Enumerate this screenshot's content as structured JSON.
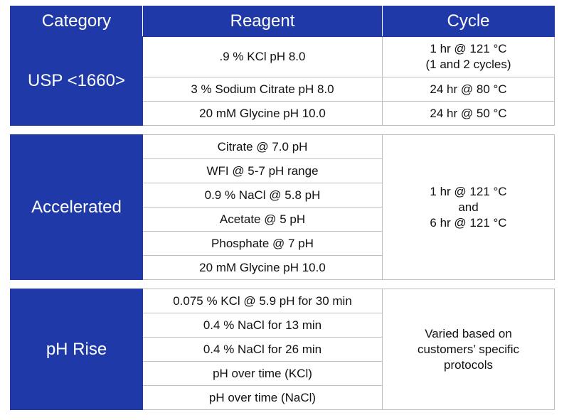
{
  "header": {
    "category": "Category",
    "reagent": "Reagent",
    "cycle": "Cycle"
  },
  "usp": {
    "category": "USP <1660>",
    "rows": [
      {
        "reagent": ".9 % KCl pH 8.0",
        "cycle_line1": "1 hr @ 121 °C",
        "cycle_line2": "(1 and 2 cycles)"
      },
      {
        "reagent": "3 % Sodium Citrate pH 8.0",
        "cycle": "24 hr @ 80 °C"
      },
      {
        "reagent": "20 mM Glycine pH 10.0",
        "cycle": "24 hr @ 50 °C"
      }
    ]
  },
  "accelerated": {
    "category": "Accelerated",
    "reagents": [
      "Citrate @ 7.0 pH",
      "WFI @ 5-7 pH range",
      "0.9 % NaCl @ 5.8 pH",
      "Acetate @ 5 pH",
      "Phosphate @ 7 pH",
      "20 mM Glycine pH 10.0"
    ],
    "cycle_lines": [
      "1 hr @ 121 °C",
      "and",
      "6 hr @ 121 °C"
    ]
  },
  "ph_rise": {
    "category": "pH Rise",
    "reagents": [
      "0.075 % KCl @ 5.9 pH for 30 min",
      "0.4 % NaCl for 13 min",
      "0.4 % NaCl for 26 min",
      "pH over time (KCl)",
      "pH over time (NaCl)"
    ],
    "cycle_lines": [
      "Varied based on",
      "customers’ specific",
      "protocols"
    ]
  }
}
